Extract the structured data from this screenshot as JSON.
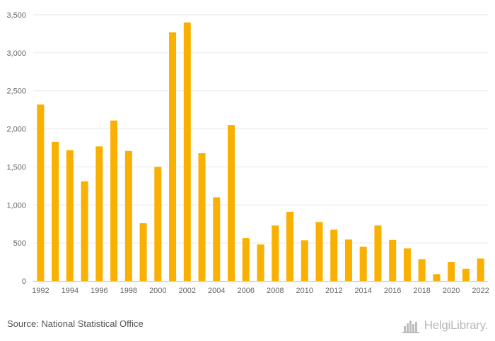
{
  "chart_data": {
    "type": "bar",
    "title": "",
    "xlabel": "",
    "ylabel": "",
    "ylim": [
      0,
      3500
    ],
    "yticks": [
      0,
      500,
      1000,
      1500,
      2000,
      2500,
      3000,
      3500
    ],
    "ytick_labels": [
      "0",
      "500",
      "1,000",
      "1,500",
      "2,000",
      "2,500",
      "3,000",
      "3,500"
    ],
    "categories": [
      "1992",
      "1993",
      "1994",
      "1995",
      "1996",
      "1997",
      "1998",
      "1999",
      "2000",
      "2001",
      "2002",
      "2003",
      "2004",
      "2005",
      "2006",
      "2007",
      "2008",
      "2009",
      "2010",
      "2011",
      "2012",
      "2013",
      "2014",
      "2015",
      "2016",
      "2017",
      "2018",
      "2019",
      "2020",
      "2021",
      "2022"
    ],
    "xtick_labels": [
      "1992",
      "1994",
      "1996",
      "1998",
      "2000",
      "2002",
      "2004",
      "2006",
      "2008",
      "2010",
      "2012",
      "2014",
      "2016",
      "2018",
      "2020",
      "2022"
    ],
    "values": [
      2320,
      1830,
      1720,
      1310,
      1770,
      2110,
      1710,
      760,
      1500,
      3270,
      3400,
      1680,
      1100,
      2050,
      565,
      480,
      730,
      910,
      535,
      775,
      675,
      545,
      450,
      730,
      540,
      430,
      285,
      90,
      250,
      160,
      295
    ],
    "bar_color": "#f9b000",
    "grid": true,
    "legend": "none"
  },
  "footer": {
    "source": "Source: National Statistical Office",
    "brand": "HelgiLibrary."
  }
}
